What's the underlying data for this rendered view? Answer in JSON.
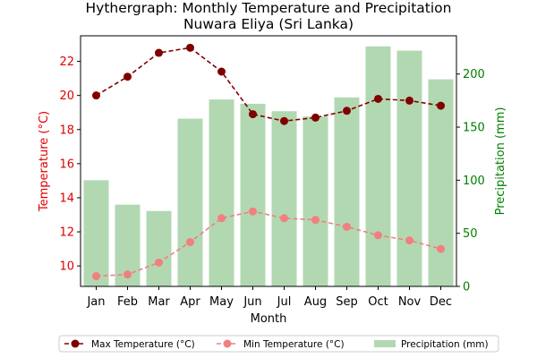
{
  "chart_data": {
    "type": "line+bar",
    "title": "Hythergraph: Monthly Temperature and Precipitation",
    "subtitle": "Nuwara Eliya (Sri Lanka)",
    "xlabel": "Month",
    "ylabel_left": "Temperature (°C)",
    "ylabel_right": "Precipitation (mm)",
    "categories": [
      "Jan",
      "Feb",
      "Mar",
      "Apr",
      "May",
      "Jun",
      "Jul",
      "Aug",
      "Sep",
      "Oct",
      "Nov",
      "Dec"
    ],
    "ylim_left": [
      8.8,
      23.5
    ],
    "ylim_right": [
      0,
      236
    ],
    "yticks_left": [
      10,
      12,
      14,
      16,
      18,
      20,
      22
    ],
    "yticks_right": [
      0,
      50,
      100,
      150,
      200
    ],
    "series": [
      {
        "name": "Max Temperature (°C)",
        "type": "line",
        "axis": "left",
        "color": "#800000",
        "style": "dashed",
        "marker": "circle",
        "values": [
          20.0,
          21.1,
          22.5,
          22.8,
          21.4,
          18.9,
          18.5,
          18.7,
          19.1,
          19.8,
          19.7,
          19.4
        ]
      },
      {
        "name": "Min Temperature (°C)",
        "type": "line",
        "axis": "left",
        "color": "#f08080",
        "style": "dashed",
        "marker": "circle",
        "values": [
          9.4,
          9.5,
          10.2,
          11.4,
          12.8,
          13.2,
          12.8,
          12.7,
          12.3,
          11.8,
          11.5,
          11.0
        ]
      },
      {
        "name": "Precipitation (mm)",
        "type": "bar",
        "axis": "right",
        "color": "#b2d8b2",
        "values": [
          100,
          77,
          71,
          158,
          176,
          172,
          165,
          160,
          178,
          226,
          222,
          195
        ]
      }
    ],
    "legend_position": "bottom",
    "grid": false
  }
}
